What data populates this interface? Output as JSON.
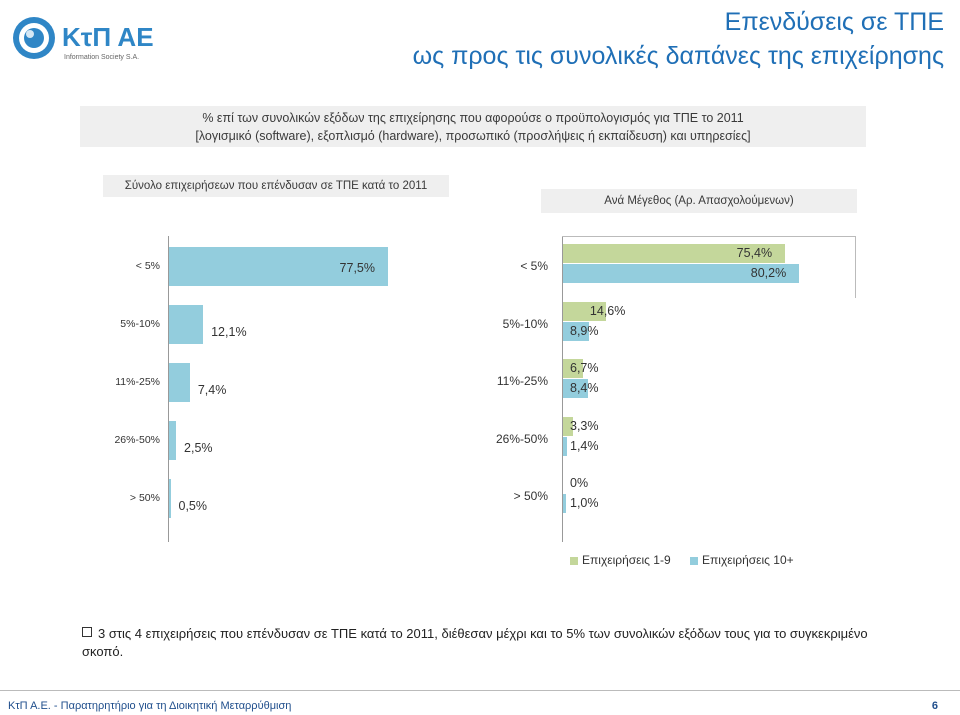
{
  "header": {
    "logo_text": "ΚτΠ ΑΕ",
    "logo_subtext": "Information Society S.A.",
    "title_line1": "Επενδύσεις σε ΤΠΕ",
    "title_line2": "ως προς τις συνολικές δαπάνες της επιχείρησης"
  },
  "subtitle": {
    "line1": "% επί των συνολικών εξόδων της επιχείρησης που αφορούσε ο προϋπολογισμός για ΤΠΕ το 2011",
    "line2": "[λογισμικό (software), εξοπλισμό (hardware), προσωπικό (προσλήψεις ή εκπαίδευση) και υπηρεσίες]"
  },
  "left_panel_header": "Σύνολο επιχειρήσεων που επένδυσαν σε ΤΠΕ κατά το 2011",
  "right_panel_header": "Ανά Μέγεθος (Αρ. Απασχολούμενων)",
  "chart_data": [
    {
      "type": "bar",
      "orientation": "horizontal",
      "categories": [
        "< 5%",
        "5%-10%",
        "11%-25%",
        "26%-50%",
        "> 50%"
      ],
      "series": [
        {
          "values": [
            77.5,
            12.1,
            7.4,
            2.5,
            0.5
          ],
          "labels": [
            "77,5%",
            "12,1%",
            "7,4%",
            "2,5%",
            "0,5%"
          ],
          "color": "#93cddd"
        }
      ]
    },
    {
      "type": "bar",
      "orientation": "horizontal",
      "categories": [
        "< 5%",
        "5%-10%",
        "11%-25%",
        "26%-50%",
        "> 50%"
      ],
      "series": [
        {
          "name": "Επιχειρήσεις 1-9",
          "values": [
            75.4,
            14.6,
            6.7,
            3.3,
            0
          ],
          "labels": [
            "75,4%",
            "14,6%",
            "6,7%",
            "3,3%",
            "0%"
          ],
          "color": "#c4d79b"
        },
        {
          "name": "Επιχειρήσεις 10+",
          "values": [
            80.2,
            8.9,
            8.4,
            1.4,
            1.0
          ],
          "labels": [
            "80,2%",
            "8,9%",
            "8,4%",
            "1,4%",
            "1,0%"
          ],
          "color": "#93cddd"
        }
      ],
      "legend": "bottom"
    }
  ],
  "note": "3 στις 4 επιχειρήσεις που επένδυσαν σε ΤΠΕ κατά το 2011, διέθεσαν μέχρι και το 5% των συνολικών εξόδων τους για το συγκεκριμένο σκοπό.",
  "footer": {
    "text": "ΚτΠ Α.Ε. - Παρατηρητήριο για τη Διοικητική Μεταρρύθμιση",
    "page": "6"
  }
}
